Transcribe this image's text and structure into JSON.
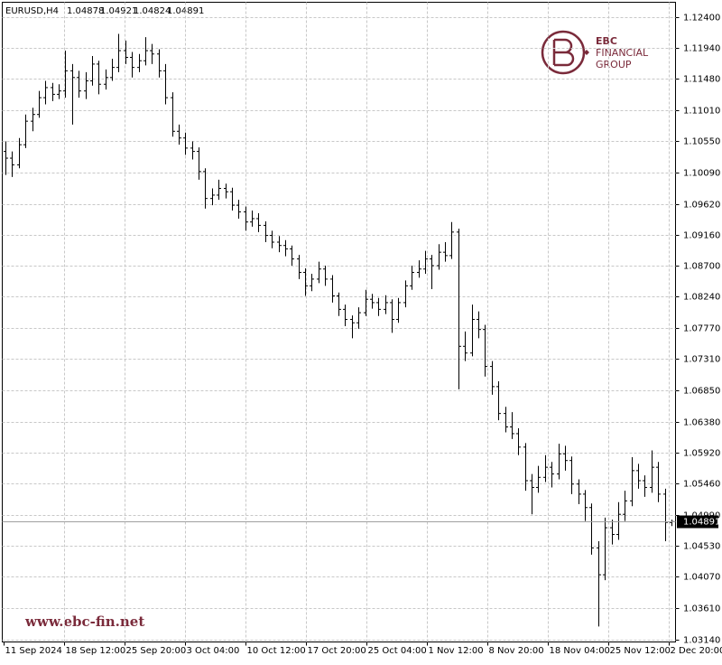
{
  "chart_data": {
    "type": "ohlc",
    "symbol": "EURUSD,H4",
    "watermark": "www.ebc-fin.net",
    "logo": {
      "line1": "EBC",
      "line2": "FINANCIAL",
      "line3": "GROUP"
    },
    "xticks": [
      "11 Sep 2024",
      "18 Sep 12:00",
      "25 Sep 20:00",
      "3 Oct 04:00",
      "10 Oct 12:00",
      "17 Oct 20:00",
      "25 Oct 04:00",
      "1 Nov 12:00",
      "8 Nov 20:00",
      "18 Nov 04:00",
      "25 Nov 12:00",
      "2 Dec 20:00"
    ],
    "ylim": [
      1.031,
      1.1262
    ],
    "yticks": [
      {
        "value": 1.124,
        "label": "1.12400"
      },
      {
        "value": 1.1194,
        "label": "1.11940"
      },
      {
        "value": 1.1148,
        "label": "1.11480"
      },
      {
        "value": 1.1101,
        "label": "1.11010"
      },
      {
        "value": 1.1055,
        "label": "1.10550"
      },
      {
        "value": 1.1009,
        "label": "1.10090"
      },
      {
        "value": 1.0962,
        "label": "1.09620"
      },
      {
        "value": 1.0916,
        "label": "1.09160"
      },
      {
        "value": 1.087,
        "label": "1.08700"
      },
      {
        "value": 1.0824,
        "label": "1.08240"
      },
      {
        "value": 1.0777,
        "label": "1.07770"
      },
      {
        "value": 1.0731,
        "label": "1.07310"
      },
      {
        "value": 1.0685,
        "label": "1.06850"
      },
      {
        "value": 1.0638,
        "label": "1.06380"
      },
      {
        "value": 1.0592,
        "label": "1.05920"
      },
      {
        "value": 1.0546,
        "label": "1.05460"
      },
      {
        "value": 1.0499,
        "label": "1.04990"
      },
      {
        "value": 1.0453,
        "label": "1.04530"
      },
      {
        "value": 1.0407,
        "label": "1.04070"
      },
      {
        "value": 1.0361,
        "label": "1.03610"
      },
      {
        "value": 1.0314,
        "label": "1.03140"
      }
    ],
    "grid": true,
    "color": "#000000",
    "ohlc": [
      [
        1.104,
        1.1055,
        1.1005,
        1.103
      ],
      [
        1.103,
        1.104,
        1.1002,
        1.102
      ],
      [
        1.102,
        1.106,
        1.1015,
        1.105
      ],
      [
        1.105,
        1.1095,
        1.1045,
        1.1085
      ],
      [
        1.1085,
        1.1105,
        1.107,
        1.1095
      ],
      [
        1.1095,
        1.113,
        1.109,
        1.112
      ],
      [
        1.112,
        1.1145,
        1.111,
        1.1135
      ],
      [
        1.1135,
        1.1142,
        1.1115,
        1.1125
      ],
      [
        1.1125,
        1.114,
        1.1118,
        1.113
      ],
      [
        1.113,
        1.119,
        1.112,
        1.116
      ],
      [
        1.116,
        1.117,
        1.108,
        1.115
      ],
      [
        1.115,
        1.116,
        1.112,
        1.113
      ],
      [
        1.113,
        1.1158,
        1.1118,
        1.1145
      ],
      [
        1.1145,
        1.1182,
        1.1138,
        1.117
      ],
      [
        1.117,
        1.1175,
        1.1125,
        1.114
      ],
      [
        1.114,
        1.1162,
        1.1132,
        1.115
      ],
      [
        1.115,
        1.1178,
        1.1145,
        1.1165
      ],
      [
        1.1165,
        1.1215,
        1.1158,
        1.119
      ],
      [
        1.119,
        1.1205,
        1.117,
        1.118
      ],
      [
        1.118,
        1.1188,
        1.115,
        1.1165
      ],
      [
        1.1165,
        1.1185,
        1.1158,
        1.1175
      ],
      [
        1.1175,
        1.121,
        1.1168,
        1.119
      ],
      [
        1.119,
        1.12,
        1.117,
        1.1185
      ],
      [
        1.1185,
        1.1192,
        1.115,
        1.116
      ],
      [
        1.116,
        1.117,
        1.111,
        1.112
      ],
      [
        1.112,
        1.1128,
        1.1062,
        1.107
      ],
      [
        1.107,
        1.108,
        1.105,
        1.106
      ],
      [
        1.106,
        1.1068,
        1.1035,
        1.1045
      ],
      [
        1.1045,
        1.1055,
        1.1028,
        1.104
      ],
      [
        1.104,
        1.1046,
        1.0998,
        1.101
      ],
      [
        1.101,
        1.1015,
        1.0955,
        1.097
      ],
      [
        1.097,
        1.0985,
        1.096,
        1.0975
      ],
      [
        1.0975,
        1.0998,
        1.0968,
        1.0985
      ],
      [
        1.0985,
        1.0992,
        1.097,
        1.098
      ],
      [
        1.098,
        1.0986,
        1.0952,
        1.096
      ],
      [
        1.096,
        1.0968,
        1.094,
        1.095
      ],
      [
        1.095,
        1.0958,
        1.0922,
        1.0935
      ],
      [
        1.0935,
        1.0952,
        1.0928,
        1.094
      ],
      [
        1.094,
        1.0948,
        1.092,
        1.093
      ],
      [
        1.093,
        1.0936,
        1.0905,
        1.0915
      ],
      [
        1.0915,
        1.0922,
        1.0896,
        1.0905
      ],
      [
        1.0905,
        1.0914,
        1.089,
        1.09
      ],
      [
        1.09,
        1.0908,
        1.0884,
        1.0895
      ],
      [
        1.0895,
        1.09,
        1.087,
        1.088
      ],
      [
        1.088,
        1.0886,
        1.085,
        1.086
      ],
      [
        1.086,
        1.0866,
        1.0825,
        1.084
      ],
      [
        1.084,
        1.0858,
        1.0832,
        1.085
      ],
      [
        1.085,
        1.0876,
        1.0844,
        1.0865
      ],
      [
        1.0865,
        1.087,
        1.084,
        1.085
      ],
      [
        1.085,
        1.0856,
        1.0815,
        1.0825
      ],
      [
        1.0825,
        1.083,
        1.0795,
        1.0805
      ],
      [
        1.0805,
        1.0812,
        1.078,
        1.079
      ],
      [
        1.079,
        1.0796,
        1.0762,
        1.0785
      ],
      [
        1.0785,
        1.0808,
        1.0776,
        1.08
      ],
      [
        1.08,
        1.0834,
        1.0795,
        1.082
      ],
      [
        1.082,
        1.0828,
        1.0806,
        1.0815
      ],
      [
        1.0815,
        1.0822,
        1.0795,
        1.0805
      ],
      [
        1.0805,
        1.0826,
        1.0798,
        1.0815
      ],
      [
        1.0815,
        1.082,
        1.077,
        1.079
      ],
      [
        1.079,
        1.0822,
        1.0785,
        1.0815
      ],
      [
        1.0815,
        1.0848,
        1.0808,
        1.084
      ],
      [
        1.084,
        1.087,
        1.0834,
        1.086
      ],
      [
        1.086,
        1.0878,
        1.0852,
        1.0865
      ],
      [
        1.0865,
        1.0892,
        1.0858,
        1.088
      ],
      [
        1.088,
        1.0886,
        1.0835,
        1.087
      ],
      [
        1.087,
        1.0902,
        1.0864,
        1.089
      ],
      [
        1.089,
        1.0905,
        1.0876,
        1.0885
      ],
      [
        1.0885,
        1.0935,
        1.088,
        1.092
      ],
      [
        1.092,
        1.0925,
        1.0686,
        1.075
      ],
      [
        1.075,
        1.0772,
        1.0728,
        1.074
      ],
      [
        1.074,
        1.0812,
        1.0735,
        1.079
      ],
      [
        1.079,
        1.0802,
        1.0762,
        1.0775
      ],
      [
        1.0775,
        1.0782,
        1.0705,
        1.072
      ],
      [
        1.072,
        1.0728,
        1.0678,
        1.069
      ],
      [
        1.069,
        1.0698,
        1.064,
        1.065
      ],
      [
        1.065,
        1.066,
        1.0622,
        1.063
      ],
      [
        1.063,
        1.0652,
        1.0612,
        1.062
      ],
      [
        1.062,
        1.0628,
        1.0588,
        1.06
      ],
      [
        1.06,
        1.0606,
        1.0535,
        1.055
      ],
      [
        1.055,
        1.056,
        1.05,
        1.054
      ],
      [
        1.054,
        1.0572,
        1.0532,
        1.0555
      ],
      [
        1.0555,
        1.0588,
        1.0548,
        1.057
      ],
      [
        1.057,
        1.0578,
        1.054,
        1.056
      ],
      [
        1.056,
        1.0605,
        1.0552,
        1.059
      ],
      [
        1.059,
        1.0602,
        1.0565,
        1.058
      ],
      [
        1.058,
        1.0586,
        1.053,
        1.0545
      ],
      [
        1.0545,
        1.0552,
        1.0515,
        1.053
      ],
      [
        1.053,
        1.0536,
        1.049,
        1.051
      ],
      [
        1.051,
        1.0516,
        1.044,
        1.045
      ],
      [
        1.045,
        1.046,
        1.0333,
        1.041
      ],
      [
        1.041,
        1.0495,
        1.0402,
        1.048
      ],
      [
        1.048,
        1.0492,
        1.0455,
        1.047
      ],
      [
        1.047,
        1.0518,
        1.0462,
        1.05
      ],
      [
        1.05,
        1.0535,
        1.049,
        1.052
      ],
      [
        1.052,
        1.0585,
        1.0512,
        1.0565
      ],
      [
        1.0565,
        1.0575,
        1.0538,
        1.055
      ],
      [
        1.055,
        1.0558,
        1.0526,
        1.054
      ],
      [
        1.054,
        1.0595,
        1.0532,
        1.057
      ],
      [
        1.057,
        1.0578,
        1.0518,
        1.053
      ],
      [
        1.053,
        1.0538,
        1.046,
        1.0488
      ],
      [
        1.04878,
        1.04921,
        1.04824,
        1.04891
      ]
    ]
  }
}
